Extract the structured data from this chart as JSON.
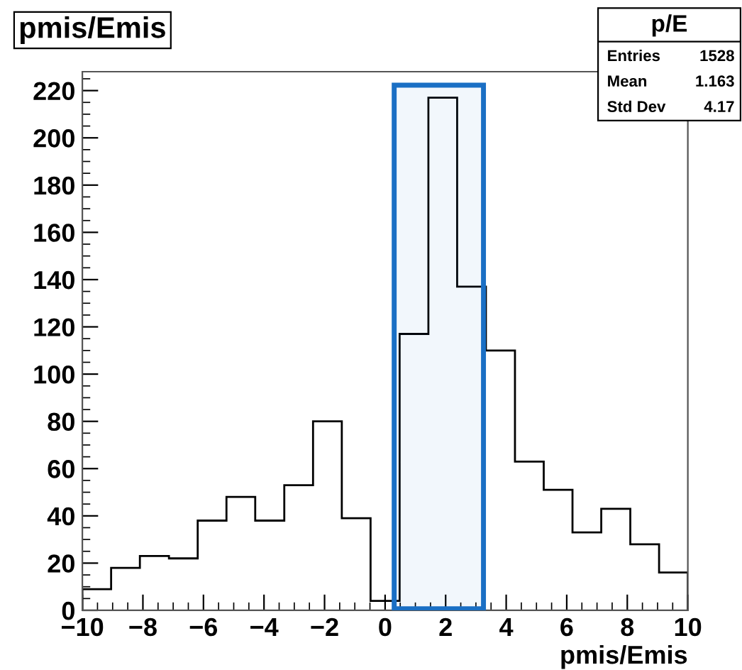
{
  "chart_data": {
    "type": "histogram",
    "title": "pmis/Emis",
    "xlabel": "pmis/Emis",
    "bins": [
      -10,
      -9.05,
      -8.1,
      -7.14,
      -6.19,
      -5.24,
      -4.29,
      -3.33,
      -2.38,
      -1.43,
      -0.48,
      0.48,
      1.43,
      2.38,
      3.33,
      4.29,
      5.24,
      6.19,
      7.14,
      8.1,
      9.05,
      10
    ],
    "values": [
      9,
      18,
      23,
      22,
      38,
      48,
      38,
      53,
      80,
      39,
      4,
      117,
      217,
      137,
      110,
      63,
      51,
      33,
      43,
      28,
      16
    ],
    "color": "#000000",
    "xlim": [
      -10,
      10
    ],
    "xticks": [
      -10,
      -8,
      -6,
      -4,
      -2,
      0,
      2,
      4,
      6,
      8,
      10
    ],
    "ylim": [
      0,
      228
    ],
    "yticks": [
      0,
      20,
      40,
      60,
      80,
      100,
      120,
      140,
      160,
      180,
      200,
      220
    ],
    "annotations": [
      "p/E",
      "Entries",
      "1528",
      "Mean",
      "1.163",
      "Std Dev",
      "4.17"
    ],
    "bands": [
      {
        "axis": "x",
        "from": 0.3,
        "to": 3.25,
        "color": "#1a6fc4"
      }
    ],
    "grid": false
  }
}
